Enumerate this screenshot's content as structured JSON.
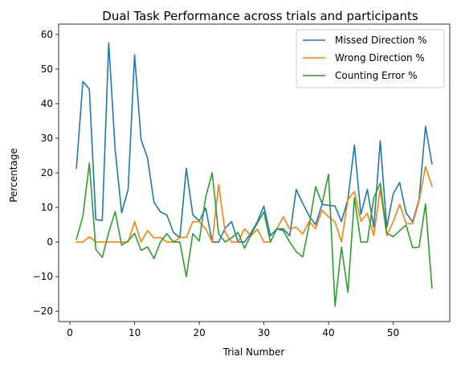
{
  "chart_data": {
    "type": "line",
    "title": "Dual Task Performance across trials and participants",
    "xlabel": "Trial Number",
    "ylabel": "Percentage",
    "xlim": [
      -1.75,
      58.75
    ],
    "ylim": [
      -23,
      63
    ],
    "xticks": [
      0,
      10,
      20,
      30,
      40,
      50
    ],
    "yticks": [
      -20,
      -10,
      0,
      10,
      20,
      30,
      40,
      50,
      60
    ],
    "grid": false,
    "legend_position": "top-right",
    "x": [
      1,
      2,
      3,
      4,
      5,
      6,
      7,
      8,
      9,
      10,
      11,
      12,
      13,
      14,
      15,
      16,
      17,
      18,
      19,
      20,
      21,
      22,
      23,
      24,
      25,
      26,
      27,
      28,
      29,
      30,
      31,
      32,
      33,
      34,
      35,
      36,
      37,
      38,
      39,
      40,
      41,
      42,
      43,
      44,
      45,
      46,
      47,
      48,
      49,
      50,
      51,
      52,
      53,
      54,
      55,
      56
    ],
    "series": [
      {
        "name": "Missed Direction %",
        "color": "#1f77b4",
        "values": [
          21.3,
          46.4,
          44.2,
          6.5,
          6.2,
          57.6,
          26.5,
          8.5,
          15.2,
          54.1,
          29.6,
          24.3,
          11.5,
          8.7,
          7.8,
          2.8,
          1.2,
          21.3,
          7.9,
          6.1,
          9.8,
          0,
          0,
          4,
          5.9,
          0,
          0,
          2.6,
          5.9,
          10.4,
          1.8,
          3.8,
          3.8,
          1.8,
          15.2,
          11.2,
          7.5,
          5,
          10.9,
          10.6,
          10.4,
          5.9,
          12.4,
          28,
          8,
          15.2,
          4.2,
          29.3,
          4.2,
          13.9,
          17.2,
          8.4,
          5.8,
          12.3,
          33.4,
          22.6
        ]
      },
      {
        "name": "Wrong Direction %",
        "color": "#ff7f0e",
        "values": [
          0,
          0,
          1.5,
          0,
          0,
          0,
          0,
          0,
          0,
          5.9,
          0,
          3.3,
          1.2,
          1.3,
          0,
          0,
          1.3,
          1.3,
          5.9,
          5.9,
          3.8,
          0,
          16.6,
          2.8,
          0,
          0,
          3.8,
          1.8,
          3.7,
          0,
          0,
          3.8,
          7.3,
          3.8,
          4.3,
          2.3,
          5.9,
          3.9,
          9.2,
          7.3,
          5.8,
          0,
          12.3,
          14.6,
          6,
          8.3,
          1.9,
          15.5,
          1.8,
          5.9,
          10.9,
          5.3,
          5.3,
          11.8,
          21.8,
          16.1
        ]
      },
      {
        "name": "Counting Error %",
        "color": "#2ca02c",
        "values": [
          0.8,
          7.5,
          22.8,
          -2.1,
          -4.5,
          2.8,
          8.8,
          -0.9,
          0.3,
          2.5,
          -2.4,
          -1.4,
          -4.8,
          0,
          2.4,
          0,
          0,
          -10,
          2.4,
          0.3,
          13,
          20,
          2.4,
          0,
          1.2,
          2.8,
          -1.8,
          2.1,
          5.5,
          8.7,
          0,
          3.8,
          3.3,
          0,
          -2.8,
          -4.3,
          4.8,
          16,
          11.1,
          19.6,
          -18.5,
          -1.5,
          -14.6,
          12.8,
          0,
          0,
          12.8,
          17,
          2.6,
          1.5,
          3.3,
          4.9,
          -1.6,
          -1.5,
          11,
          -13.3
        ]
      }
    ]
  }
}
